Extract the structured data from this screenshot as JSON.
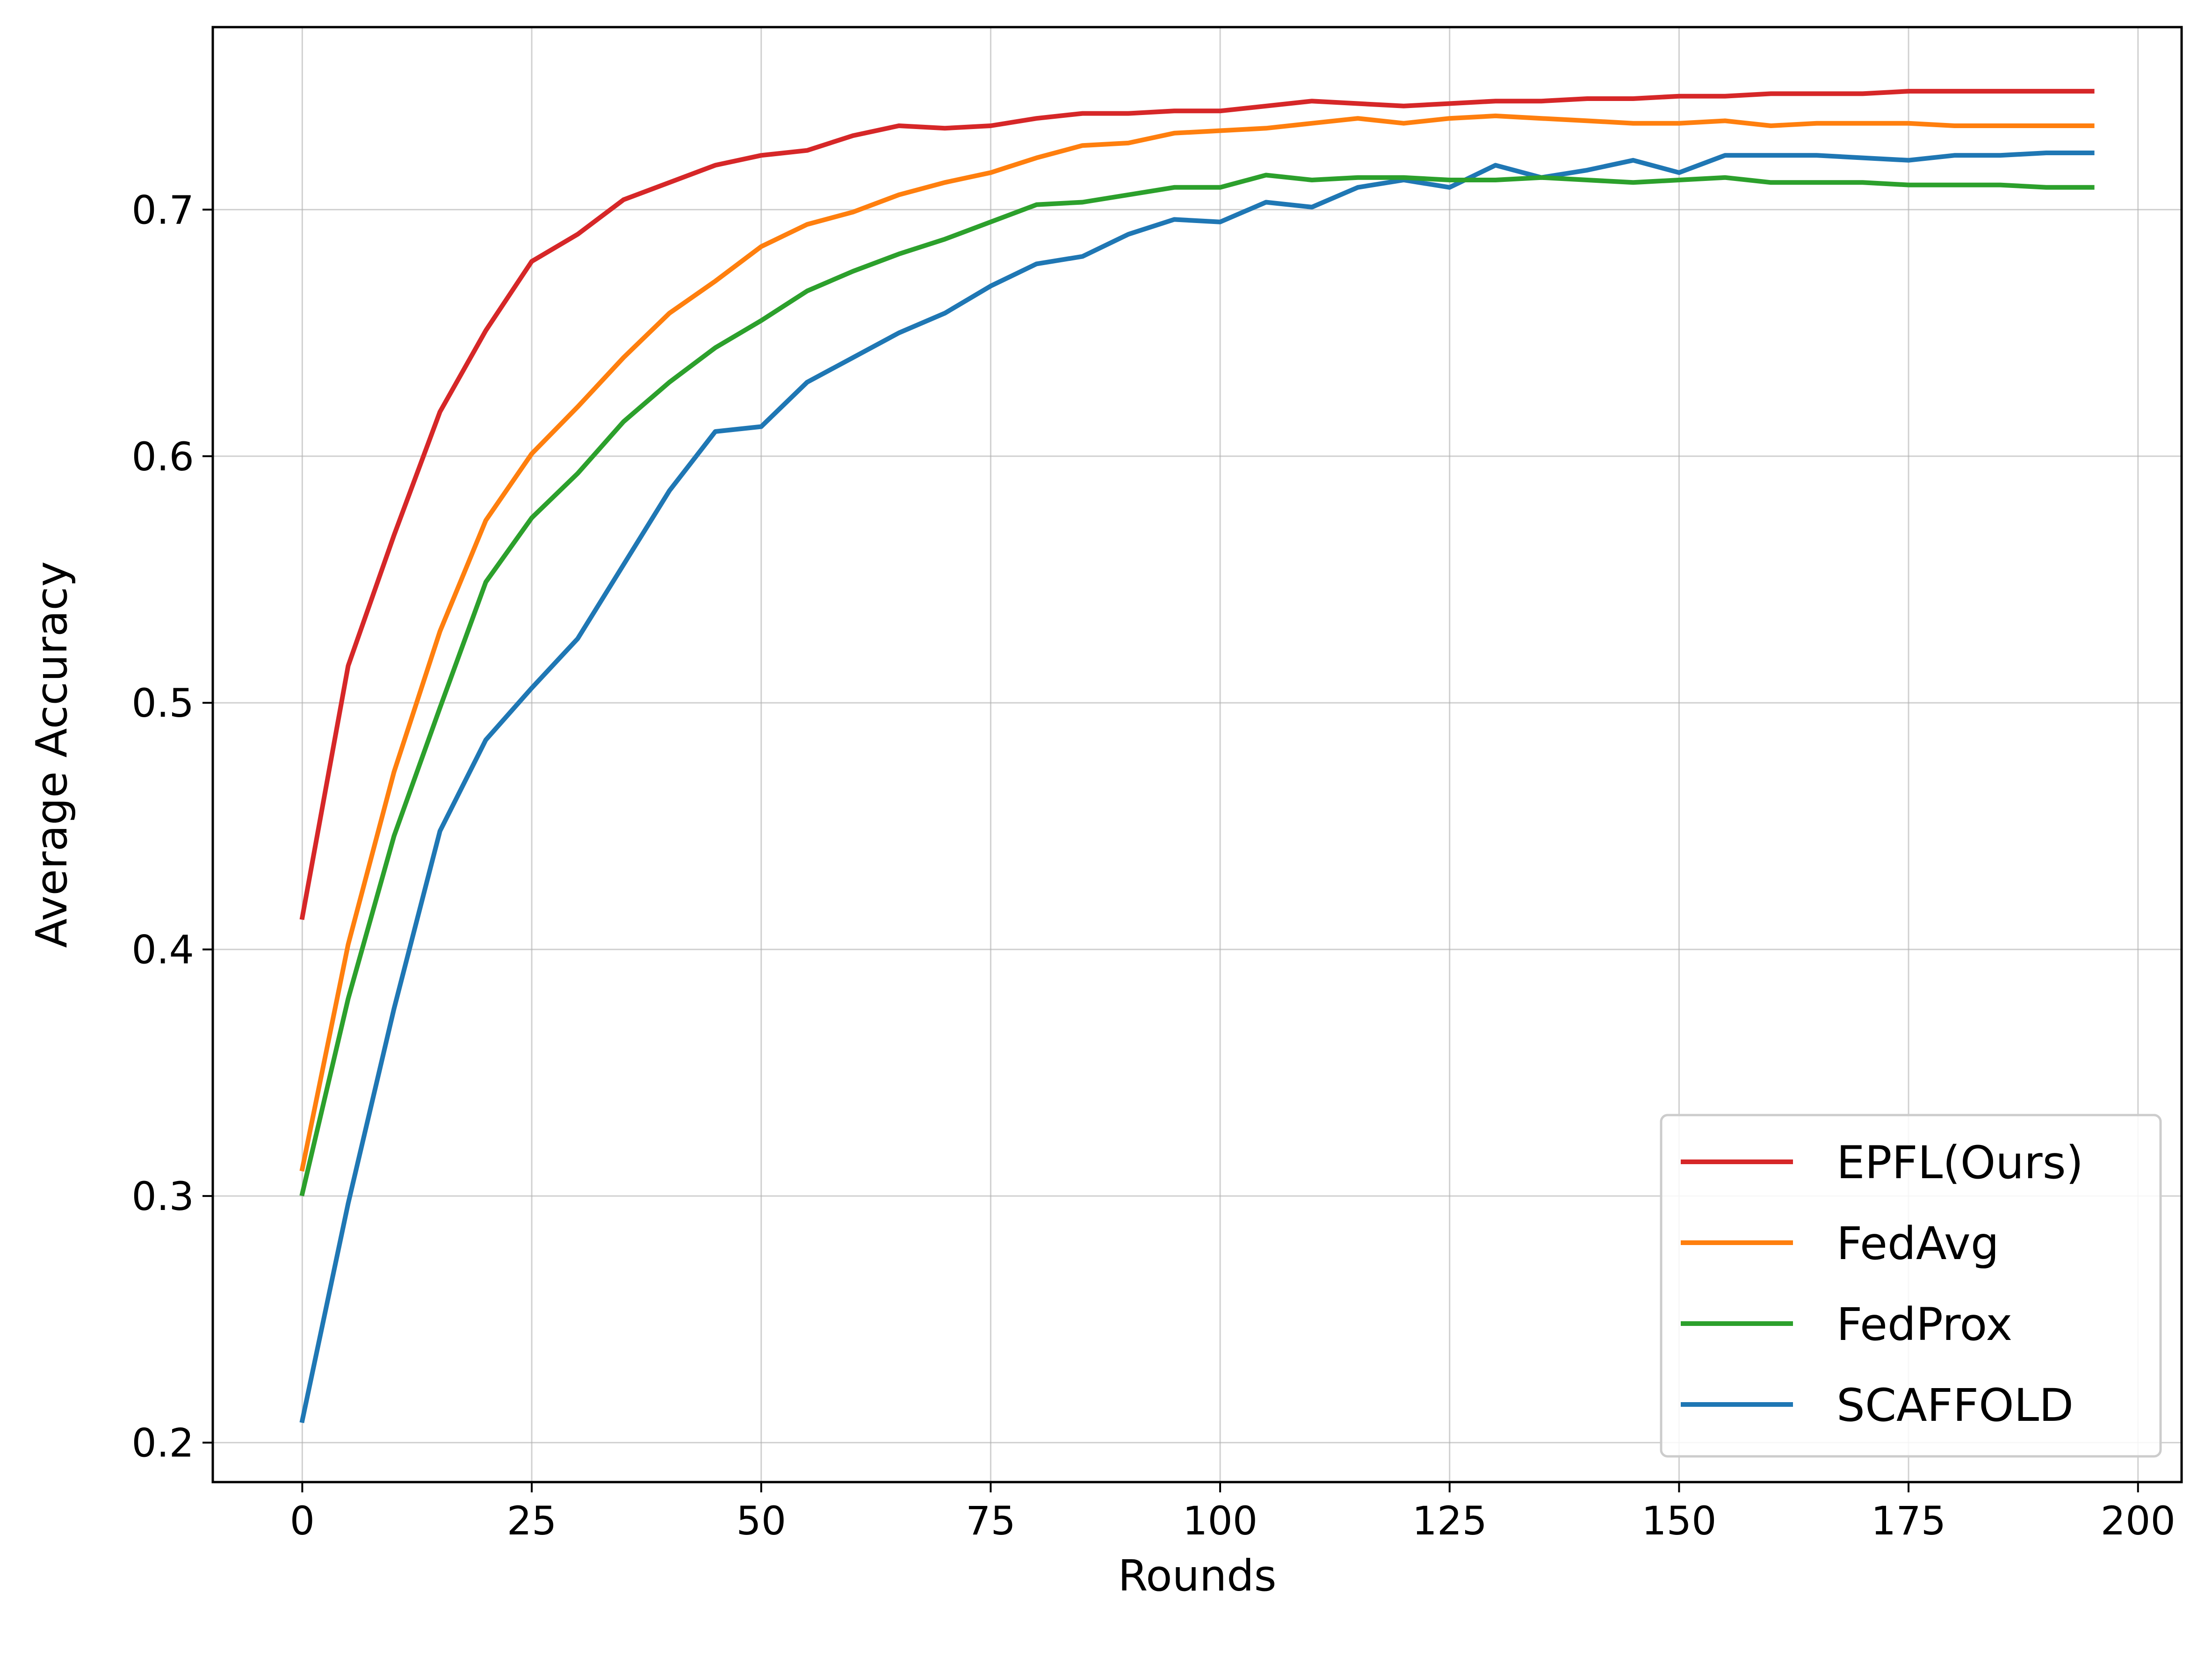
{
  "chart_data": {
    "type": "line",
    "xlabel": "Rounds",
    "ylabel": "Average Accuracy",
    "xlim": [
      -9.75,
      204.75
    ],
    "ylim": [
      0.184,
      0.774
    ],
    "xticks": [
      0,
      25,
      50,
      75,
      100,
      125,
      150,
      175,
      200
    ],
    "xtick_labels": [
      "0",
      "25",
      "50",
      "75",
      "100",
      "125",
      "150",
      "175",
      "200"
    ],
    "yticks": [
      0.2,
      0.3,
      0.4,
      0.5,
      0.6,
      0.7
    ],
    "ytick_labels": [
      "0.2",
      "0.3",
      "0.4",
      "0.5",
      "0.6",
      "0.7"
    ],
    "grid": true,
    "legend_position": "lower-right",
    "x": [
      0,
      5,
      10,
      15,
      20,
      25,
      30,
      35,
      40,
      45,
      50,
      55,
      60,
      65,
      70,
      75,
      80,
      85,
      90,
      95,
      100,
      105,
      110,
      115,
      120,
      125,
      130,
      135,
      140,
      145,
      150,
      155,
      160,
      165,
      170,
      175,
      180,
      185,
      190,
      195
    ],
    "series": [
      {
        "name": "EPFL(Ours)",
        "color": "#d62728",
        "values": [
          0.413,
          0.515,
          0.568,
          0.618,
          0.651,
          0.679,
          0.69,
          0.704,
          0.711,
          0.718,
          0.722,
          0.724,
          0.73,
          0.734,
          0.733,
          0.734,
          0.737,
          0.739,
          0.739,
          0.74,
          0.74,
          0.742,
          0.744,
          0.743,
          0.742,
          0.743,
          0.744,
          0.744,
          0.745,
          0.745,
          0.746,
          0.746,
          0.747,
          0.747,
          0.747,
          0.748,
          0.748,
          0.748,
          0.748,
          0.748
        ]
      },
      {
        "name": "FedAvg",
        "color": "#ff7f0e",
        "values": [
          0.311,
          0.402,
          0.472,
          0.529,
          0.574,
          0.601,
          0.62,
          0.64,
          0.658,
          0.671,
          0.685,
          0.694,
          0.699,
          0.706,
          0.711,
          0.715,
          0.721,
          0.726,
          0.727,
          0.731,
          0.732,
          0.733,
          0.735,
          0.737,
          0.735,
          0.737,
          0.738,
          0.737,
          0.736,
          0.735,
          0.735,
          0.736,
          0.734,
          0.735,
          0.735,
          0.735,
          0.734,
          0.734,
          0.734,
          0.734
        ]
      },
      {
        "name": "FedProx",
        "color": "#2ca02c",
        "values": [
          0.301,
          0.38,
          0.446,
          0.498,
          0.549,
          0.575,
          0.593,
          0.614,
          0.63,
          0.644,
          0.655,
          0.667,
          0.675,
          0.682,
          0.688,
          0.695,
          0.702,
          0.703,
          0.706,
          0.709,
          0.709,
          0.714,
          0.712,
          0.713,
          0.713,
          0.712,
          0.712,
          0.713,
          0.712,
          0.711,
          0.712,
          0.713,
          0.711,
          0.711,
          0.711,
          0.71,
          0.71,
          0.71,
          0.709,
          0.709
        ]
      },
      {
        "name": "SCAFFOLD",
        "color": "#1f77b4",
        "values": [
          0.209,
          0.297,
          0.376,
          0.448,
          0.485,
          0.506,
          0.526,
          0.556,
          0.586,
          0.61,
          0.612,
          0.63,
          0.64,
          0.65,
          0.658,
          0.669,
          0.678,
          0.681,
          0.69,
          0.696,
          0.695,
          0.703,
          0.701,
          0.709,
          0.712,
          0.709,
          0.718,
          0.713,
          0.716,
          0.72,
          0.715,
          0.722,
          0.722,
          0.722,
          0.721,
          0.72,
          0.722,
          0.722,
          0.723,
          0.723
        ]
      }
    ]
  }
}
